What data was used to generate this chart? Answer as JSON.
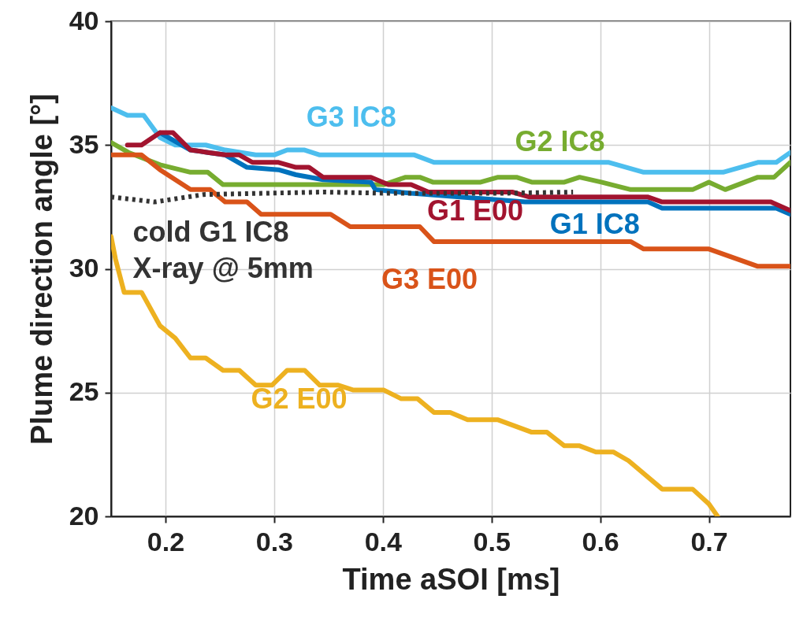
{
  "chart_data": {
    "type": "line",
    "xlabel": "Time aSOI [ms]",
    "ylabel": "Plume direction angle [°]",
    "xlim": [
      0.15,
      0.775
    ],
    "xticks": [
      0.2,
      0.3,
      0.4,
      0.5,
      0.6,
      0.7
    ],
    "ylim": [
      20,
      40
    ],
    "yticks": [
      20,
      25,
      30,
      35,
      40
    ],
    "grid": true,
    "series": [
      {
        "name": "G3 IC8",
        "color": "#4dbeee",
        "x": [
          0.15,
          0.165,
          0.18,
          0.195,
          0.209,
          0.237,
          0.255,
          0.283,
          0.3,
          0.312,
          0.328,
          0.342,
          0.429,
          0.447,
          0.608,
          0.64,
          0.713,
          0.745,
          0.762,
          0.775
        ],
        "values": [
          36.5,
          36.2,
          36.2,
          35.3,
          35.0,
          35.0,
          34.8,
          34.6,
          34.6,
          34.8,
          34.8,
          34.6,
          34.6,
          34.3,
          34.3,
          33.9,
          33.9,
          34.3,
          34.3,
          34.7
        ]
      },
      {
        "name": "G2 IC8",
        "color": "#77ac30",
        "x": [
          0.15,
          0.166,
          0.195,
          0.223,
          0.239,
          0.253,
          0.401,
          0.421,
          0.434,
          0.446,
          0.49,
          0.506,
          0.523,
          0.537,
          0.567,
          0.581,
          0.601,
          0.628,
          0.685,
          0.7,
          0.715,
          0.745,
          0.76,
          0.775
        ],
        "values": [
          35.1,
          34.7,
          34.2,
          33.9,
          33.9,
          33.4,
          33.4,
          33.7,
          33.7,
          33.5,
          33.5,
          33.7,
          33.7,
          33.5,
          33.5,
          33.7,
          33.5,
          33.2,
          33.2,
          33.5,
          33.2,
          33.7,
          33.7,
          34.3
        ]
      },
      {
        "name": "G1 IC8",
        "color": "#0072bd",
        "x": [
          0.195,
          0.223,
          0.239,
          0.255,
          0.275,
          0.304,
          0.32,
          0.345,
          0.389,
          0.393,
          0.426,
          0.531,
          0.644,
          0.657,
          0.762,
          0.775
        ],
        "values": [
          35.5,
          34.8,
          34.7,
          34.6,
          34.1,
          34.0,
          33.8,
          33.6,
          33.5,
          33.2,
          33.05,
          32.7,
          32.7,
          32.45,
          32.45,
          32.2
        ]
      },
      {
        "name": "G1 E00",
        "color": "#a2142f",
        "x": [
          0.165,
          0.178,
          0.195,
          0.207,
          0.223,
          0.239,
          0.255,
          0.268,
          0.28,
          0.304,
          0.32,
          0.332,
          0.345,
          0.389,
          0.405,
          0.426,
          0.442,
          0.519,
          0.535,
          0.644,
          0.657,
          0.757,
          0.775
        ],
        "values": [
          35.0,
          35.0,
          35.5,
          35.5,
          34.8,
          34.7,
          34.6,
          34.6,
          34.3,
          34.3,
          34.1,
          34.1,
          33.7,
          33.7,
          33.4,
          33.4,
          33.1,
          33.1,
          32.9,
          32.9,
          32.7,
          32.7,
          32.35
        ]
      },
      {
        "name": "G3 E00",
        "color": "#d95319",
        "x": [
          0.15,
          0.178,
          0.195,
          0.223,
          0.241,
          0.255,
          0.275,
          0.288,
          0.352,
          0.37,
          0.434,
          0.447,
          0.628,
          0.64,
          0.7,
          0.745,
          0.775
        ],
        "values": [
          34.6,
          34.6,
          34.0,
          33.2,
          33.2,
          32.7,
          32.7,
          32.2,
          32.2,
          31.7,
          31.7,
          31.1,
          31.1,
          30.8,
          30.8,
          30.1,
          30.1
        ]
      },
      {
        "name": "G2 E00",
        "color": "#edb120",
        "x": [
          0.15,
          0.154,
          0.162,
          0.178,
          0.195,
          0.209,
          0.223,
          0.237,
          0.253,
          0.268,
          0.283,
          0.298,
          0.312,
          0.328,
          0.342,
          0.359,
          0.373,
          0.401,
          0.417,
          0.432,
          0.447,
          0.462,
          0.478,
          0.506,
          0.537,
          0.551,
          0.567,
          0.581,
          0.596,
          0.612,
          0.626,
          0.657,
          0.685,
          0.7,
          0.708
        ],
        "values": [
          31.3,
          30.4,
          29.05,
          29.05,
          27.7,
          27.2,
          26.4,
          26.4,
          25.9,
          25.9,
          25.3,
          25.3,
          25.9,
          25.9,
          25.3,
          25.3,
          25.1,
          25.1,
          24.75,
          24.75,
          24.2,
          24.2,
          23.9,
          23.9,
          23.4,
          23.4,
          22.85,
          22.85,
          22.6,
          22.6,
          22.25,
          21.1,
          21.1,
          20.5,
          20.0
        ]
      },
      {
        "name": "cold G1 IC8\nX-ray @ 5mm",
        "color": "#333333",
        "line_style": "dotted",
        "x": [
          0.15,
          0.19,
          0.235,
          0.345,
          0.405,
          0.506,
          0.575
        ],
        "values": [
          32.9,
          32.7,
          33.0,
          33.1,
          33.05,
          33.05,
          33.1
        ]
      }
    ]
  }
}
